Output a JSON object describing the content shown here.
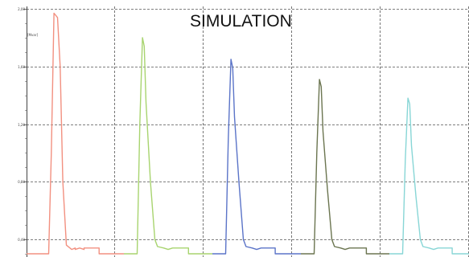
{
  "chart_data": {
    "type": "line",
    "title": "SIMULATION",
    "ylabel": "[Mvar]",
    "xlabel": "",
    "ylim": [
      0.3,
      2.0
    ],
    "yticks": [
      {
        "value": 2.0,
        "label": "2,00"
      },
      {
        "value": 1.6,
        "label": "1,60"
      },
      {
        "value": 1.2,
        "label": "1,20"
      },
      {
        "value": 0.8,
        "label": "0,80"
      },
      {
        "value": 0.4,
        "label": "0,40"
      }
    ],
    "xlim": [
      0,
      10
    ],
    "xgrid": [
      2,
      4,
      6,
      8,
      10
    ],
    "grid": true,
    "legend": "none",
    "series": [
      {
        "color": "#f29080",
        "x": [
          0,
          0.5,
          0.56,
          0.62,
          0.7,
          0.76,
          0.82,
          0.9,
          1.02,
          1.1,
          1.1,
          1.2,
          1.3,
          1.3,
          1.64,
          1.64,
          2.2
        ],
        "y": [
          0.3,
          0.3,
          1.0,
          1.97,
          1.94,
          1.6,
          0.8,
          0.36,
          0.33,
          0.34,
          0.33,
          0.34,
          0.33,
          0.34,
          0.34,
          0.3,
          0.3
        ]
      },
      {
        "color": "#a8d46f",
        "x": [
          2.2,
          2.5,
          2.56,
          2.62,
          2.66,
          2.7,
          2.8,
          2.9,
          2.96,
          3.1,
          3.2,
          3.3,
          3.66,
          3.66,
          4.2
        ],
        "y": [
          0.3,
          0.3,
          1.2,
          1.8,
          1.74,
          1.35,
          0.8,
          0.4,
          0.35,
          0.34,
          0.33,
          0.34,
          0.34,
          0.3,
          0.3
        ]
      },
      {
        "color": "#5b74c8",
        "x": [
          4.2,
          4.5,
          4.56,
          4.62,
          4.66,
          4.7,
          4.8,
          4.9,
          4.96,
          5.1,
          5.2,
          5.3,
          5.62,
          5.62,
          6.2
        ],
        "y": [
          0.3,
          0.3,
          1.1,
          1.65,
          1.59,
          1.25,
          0.8,
          0.4,
          0.35,
          0.34,
          0.33,
          0.34,
          0.34,
          0.3,
          0.3
        ]
      },
      {
        "color": "#6b7550",
        "x": [
          6.2,
          6.5,
          6.56,
          6.62,
          6.66,
          6.7,
          6.8,
          6.9,
          6.96,
          7.1,
          7.2,
          7.3,
          7.68,
          7.68,
          8.2
        ],
        "y": [
          0.3,
          0.3,
          1.0,
          1.51,
          1.46,
          1.15,
          0.75,
          0.4,
          0.35,
          0.34,
          0.33,
          0.34,
          0.34,
          0.3,
          0.3
        ]
      },
      {
        "color": "#88d6d6",
        "x": [
          8.2,
          8.5,
          8.56,
          8.62,
          8.66,
          8.7,
          8.8,
          8.9,
          8.96,
          9.1,
          9.2,
          9.3,
          9.62,
          9.62,
          10.0
        ],
        "y": [
          0.3,
          0.3,
          0.95,
          1.38,
          1.34,
          1.05,
          0.7,
          0.4,
          0.35,
          0.34,
          0.33,
          0.34,
          0.34,
          0.3,
          0.3
        ]
      }
    ]
  }
}
